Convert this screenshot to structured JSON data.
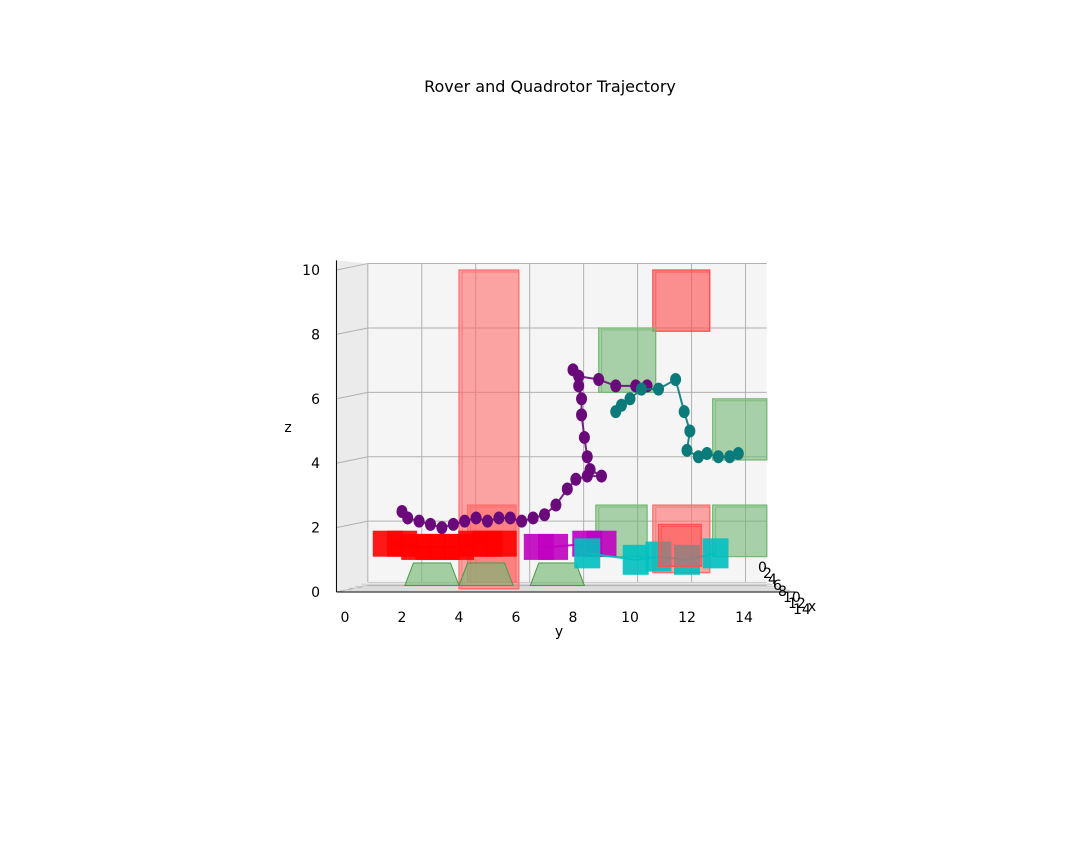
{
  "chart_data": {
    "type": "scatter",
    "title": "Rover and Quadrotor Trajectory",
    "xlabel": "x",
    "ylabel": "y",
    "zlabel": "z",
    "ylim": [
      0,
      15
    ],
    "zlim": [
      0,
      10
    ],
    "y_ticks": [
      "0",
      "2",
      "4",
      "6",
      "8",
      "10",
      "12",
      "14"
    ],
    "z_ticks": [
      "0",
      "2",
      "4",
      "6",
      "8",
      "10"
    ],
    "x_ticks": [
      "0",
      "2",
      "4",
      "6",
      "8",
      "10",
      "12",
      "14"
    ],
    "grid": true,
    "legend": false,
    "colors": {
      "quadrotor_1": "#6a0a7a",
      "quadrotor_2": "#0a7a7a",
      "rover_1": "#ff0000",
      "rover_2": "#c000c0",
      "rover_3": "#00c0c0",
      "obstacle": "#ff6060",
      "goal": "#60b060"
    },
    "series": [
      {
        "kind": "quadrotor_path",
        "color_key": "quadrotor_1",
        "points_yz": [
          [
            2.0,
            2.5
          ],
          [
            2.2,
            2.3
          ],
          [
            2.6,
            2.2
          ],
          [
            3.0,
            2.1
          ],
          [
            3.4,
            2.0
          ],
          [
            3.8,
            2.1
          ],
          [
            4.2,
            2.2
          ],
          [
            4.6,
            2.3
          ],
          [
            5.0,
            2.2
          ],
          [
            5.4,
            2.3
          ],
          [
            5.8,
            2.3
          ],
          [
            6.2,
            2.2
          ],
          [
            6.6,
            2.3
          ],
          [
            7.0,
            2.4
          ],
          [
            7.4,
            2.7
          ],
          [
            7.8,
            3.2
          ],
          [
            8.1,
            3.5
          ],
          [
            8.5,
            3.6
          ],
          [
            9.0,
            3.6
          ],
          [
            8.6,
            3.8
          ],
          [
            8.5,
            4.2
          ],
          [
            8.4,
            4.8
          ],
          [
            8.3,
            5.5
          ],
          [
            8.3,
            6.0
          ],
          [
            8.2,
            6.4
          ],
          [
            8.0,
            6.9
          ],
          [
            8.2,
            6.7
          ],
          [
            8.9,
            6.6
          ],
          [
            9.5,
            6.4
          ],
          [
            10.2,
            6.4
          ],
          [
            10.6,
            6.4
          ]
        ]
      },
      {
        "kind": "quadrotor_path",
        "color_key": "quadrotor_2",
        "points_yz": [
          [
            9.5,
            5.6
          ],
          [
            9.7,
            5.8
          ],
          [
            10.0,
            6.0
          ],
          [
            10.4,
            6.3
          ],
          [
            11.0,
            6.3
          ],
          [
            11.6,
            6.6
          ],
          [
            11.9,
            5.6
          ],
          [
            12.1,
            5.0
          ],
          [
            12.0,
            4.4
          ],
          [
            12.4,
            4.2
          ],
          [
            12.7,
            4.3
          ],
          [
            13.1,
            4.2
          ],
          [
            13.5,
            4.2
          ],
          [
            13.8,
            4.3
          ]
        ]
      },
      {
        "kind": "rover_path",
        "color_key": "rover_1",
        "points_yz": [
          [
            1.5,
            1.5
          ],
          [
            2.0,
            1.5
          ],
          [
            2.5,
            1.4
          ],
          [
            3.0,
            1.4
          ],
          [
            3.5,
            1.4
          ],
          [
            4.0,
            1.4
          ],
          [
            4.5,
            1.5
          ],
          [
            5.0,
            1.5
          ],
          [
            5.5,
            1.5
          ]
        ]
      },
      {
        "kind": "rover_path",
        "color_key": "rover_2",
        "points_yz": [
          [
            6.8,
            1.4
          ],
          [
            7.3,
            1.4
          ],
          [
            8.5,
            1.5
          ],
          [
            9.0,
            1.5
          ]
        ]
      },
      {
        "kind": "rover_path",
        "color_key": "rover_3",
        "points_yz": [
          [
            8.5,
            1.2
          ],
          [
            10.2,
            1.0
          ],
          [
            11.0,
            1.1
          ],
          [
            12.0,
            1.0
          ],
          [
            13.0,
            1.2
          ]
        ]
      }
    ]
  }
}
